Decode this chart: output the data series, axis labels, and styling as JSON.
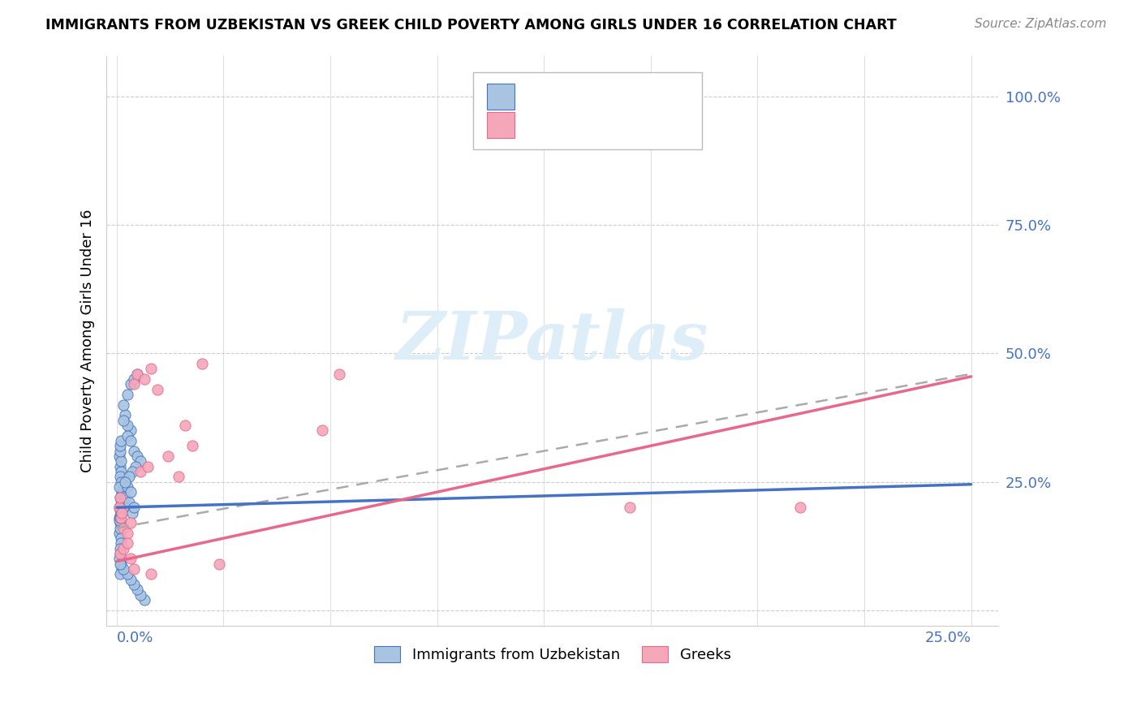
{
  "title": "IMMIGRANTS FROM UZBEKISTAN VS GREEK CHILD POVERTY AMONG GIRLS UNDER 16 CORRELATION CHART",
  "source": "Source: ZipAtlas.com",
  "ylabel": "Child Poverty Among Girls Under 16",
  "blue_color": "#a8c4e0",
  "blue_line_color": "#4472c4",
  "pink_color": "#f4a7b9",
  "pink_line_color": "#e8688a",
  "grey_dash_color": "#aaaaaa",
  "watermark_color": "#ddeef8",
  "blue_line_x0": 0.0,
  "blue_line_x1": 0.25,
  "blue_line_y0": 0.2,
  "blue_line_y1": 0.245,
  "pink_line_x0": 0.0,
  "pink_line_x1": 0.25,
  "pink_line_y0": 0.095,
  "pink_line_y1": 0.455,
  "grey_line_x0": 0.0,
  "grey_line_x1": 0.25,
  "grey_line_y0": 0.16,
  "grey_line_y1": 0.46,
  "xlim_min": -0.003,
  "xlim_max": 0.258,
  "ylim_min": -0.03,
  "ylim_max": 1.08,
  "ytick_positions": [
    0.0,
    0.25,
    0.5,
    0.75,
    1.0
  ],
  "ytick_labels": [
    "",
    "25.0%",
    "50.0%",
    "75.0%",
    "100.0%"
  ],
  "xtick_positions": [
    0.0,
    0.03125,
    0.0625,
    0.09375,
    0.125,
    0.15625,
    0.1875,
    0.21875,
    0.25
  ],
  "blue_x": [
    0.0008,
    0.001,
    0.0012,
    0.0015,
    0.002,
    0.0008,
    0.001,
    0.0009,
    0.0015,
    0.002,
    0.0011,
    0.0013,
    0.0009,
    0.001,
    0.0008,
    0.0012,
    0.0014,
    0.001,
    0.0016,
    0.002,
    0.0008,
    0.001,
    0.0009,
    0.0011,
    0.0013,
    0.0015,
    0.0008,
    0.001,
    0.0009,
    0.0012,
    0.001,
    0.0008,
    0.0011,
    0.0013,
    0.001,
    0.0009,
    0.0012,
    0.0008,
    0.001,
    0.0011,
    0.002,
    0.0025,
    0.003,
    0.0035,
    0.004,
    0.0045,
    0.005,
    0.004,
    0.003,
    0.0025,
    0.002,
    0.003,
    0.004,
    0.005,
    0.006,
    0.007,
    0.0055,
    0.0045,
    0.0035,
    0.0025,
    0.002,
    0.003,
    0.004,
    0.005,
    0.006,
    0.008,
    0.007,
    0.006,
    0.005,
    0.004,
    0.003,
    0.002,
    0.001
  ],
  "blue_y": [
    0.18,
    0.2,
    0.22,
    0.19,
    0.21,
    0.15,
    0.16,
    0.17,
    0.23,
    0.24,
    0.14,
    0.13,
    0.12,
    0.11,
    0.1,
    0.09,
    0.08,
    0.07,
    0.25,
    0.26,
    0.175,
    0.185,
    0.195,
    0.205,
    0.215,
    0.225,
    0.2,
    0.22,
    0.18,
    0.19,
    0.28,
    0.3,
    0.27,
    0.29,
    0.31,
    0.26,
    0.25,
    0.24,
    0.32,
    0.33,
    0.2,
    0.22,
    0.24,
    0.21,
    0.23,
    0.19,
    0.2,
    0.35,
    0.36,
    0.38,
    0.37,
    0.34,
    0.33,
    0.31,
    0.3,
    0.29,
    0.28,
    0.27,
    0.26,
    0.25,
    0.4,
    0.42,
    0.44,
    0.45,
    0.46,
    0.02,
    0.03,
    0.04,
    0.05,
    0.06,
    0.07,
    0.08,
    0.09
  ],
  "pink_x": [
    0.0008,
    0.001,
    0.0012,
    0.0015,
    0.002,
    0.003,
    0.004,
    0.005,
    0.006,
    0.007,
    0.008,
    0.009,
    0.01,
    0.012,
    0.015,
    0.018,
    0.02,
    0.022,
    0.025,
    0.03,
    0.06,
    0.065,
    0.001,
    0.002,
    0.003,
    0.004,
    0.005,
    0.01,
    0.15,
    0.2
  ],
  "pink_y": [
    0.2,
    0.22,
    0.18,
    0.19,
    0.16,
    0.15,
    0.17,
    0.44,
    0.46,
    0.27,
    0.45,
    0.28,
    0.47,
    0.43,
    0.3,
    0.26,
    0.36,
    0.32,
    0.48,
    0.09,
    0.35,
    0.46,
    0.11,
    0.12,
    0.13,
    0.1,
    0.08,
    0.07,
    0.2,
    0.2
  ]
}
